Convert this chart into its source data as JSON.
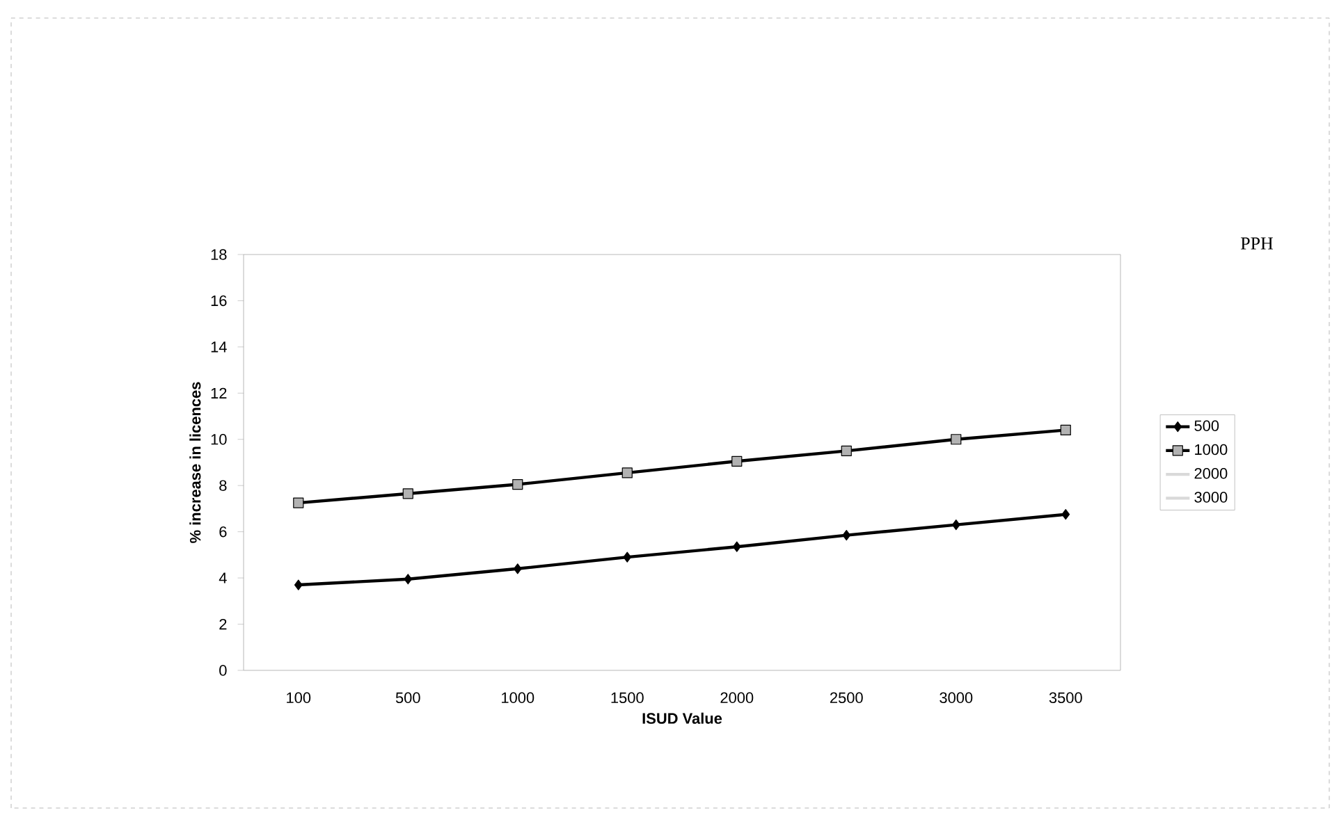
{
  "chart_data": {
    "type": "line",
    "xlabel": "ISUD Value",
    "ylabel": "% increase in licences",
    "legend_title": "PPH",
    "legend": "right",
    "categories": [
      "100",
      "500",
      "1000",
      "1500",
      "2000",
      "2500",
      "3000",
      "3500"
    ],
    "ylim": [
      0,
      18
    ],
    "yticks": [
      0,
      2,
      4,
      6,
      8,
      10,
      12,
      14,
      16,
      18
    ],
    "grid": false,
    "series": [
      {
        "name": "500",
        "color": "#000000",
        "marker": "diamond",
        "values": [
          3.7,
          3.95,
          4.4,
          4.9,
          5.35,
          5.85,
          6.3,
          6.75
        ]
      },
      {
        "name": "1000",
        "color": "#000000",
        "marker": "square",
        "values": [
          7.25,
          7.65,
          8.05,
          8.55,
          9.05,
          9.5,
          10.0,
          10.4
        ]
      },
      {
        "name": "2000",
        "color": "#d9d9d9",
        "marker": "none",
        "values": [
          null,
          null,
          null,
          null,
          null,
          null,
          null,
          null
        ]
      },
      {
        "name": "3000",
        "color": "#d9d9d9",
        "marker": "none",
        "values": [
          null,
          null,
          null,
          null,
          null,
          null,
          null,
          null
        ]
      }
    ]
  }
}
